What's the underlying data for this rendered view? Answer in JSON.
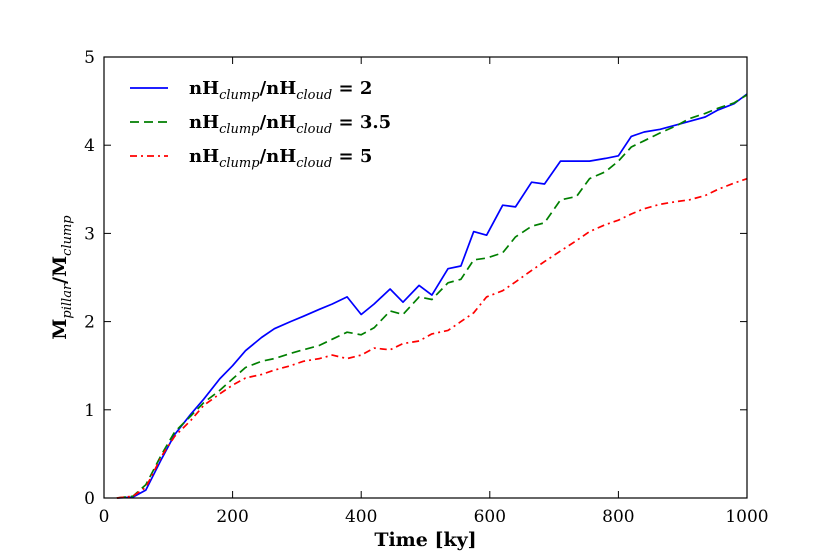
{
  "chart_data": {
    "type": "line",
    "xlabel": "Time [ky]",
    "ylabel": {
      "base1": "M",
      "sub1": "pillar",
      "sep": "/",
      "base2": "M",
      "sub2": "clump"
    },
    "xlim": [
      0,
      1000
    ],
    "ylim": [
      0,
      5
    ],
    "xticks": [
      0,
      200,
      400,
      600,
      800,
      1000
    ],
    "yticks": [
      0,
      1,
      2,
      3,
      4,
      5
    ],
    "grid": false,
    "legend_position": "top-left",
    "series": [
      {
        "name": "nH_clump/nH_cloud = 2",
        "label": {
          "b1": "nH",
          "s1": "clump",
          "mid": "/nH",
          "s2": "cloud",
          "tail": " = 2"
        },
        "color": "#0000ff",
        "style": "solid",
        "x": [
          20,
          45,
          65,
          90,
          110,
          135,
          155,
          180,
          200,
          220,
          245,
          265,
          290,
          310,
          335,
          355,
          378,
          400,
          420,
          445,
          465,
          490,
          510,
          535,
          555,
          575,
          595,
          620,
          640,
          665,
          685,
          710,
          735,
          755,
          780,
          800,
          820,
          840,
          865,
          890,
          910,
          935,
          955,
          980,
          1000
        ],
        "y": [
          0,
          0.01,
          0.09,
          0.45,
          0.72,
          0.95,
          1.12,
          1.35,
          1.5,
          1.67,
          1.82,
          1.92,
          2.0,
          2.06,
          2.14,
          2.2,
          2.28,
          2.08,
          2.2,
          2.37,
          2.22,
          2.41,
          2.3,
          2.6,
          2.63,
          3.02,
          2.98,
          3.32,
          3.3,
          3.58,
          3.56,
          3.82,
          3.82,
          3.82,
          3.85,
          3.88,
          4.1,
          4.15,
          4.18,
          4.23,
          4.27,
          4.32,
          4.4,
          4.47,
          4.58
        ]
      },
      {
        "name": "nH_clump/nH_cloud = 3.5",
        "label": {
          "b1": "nH",
          "s1": "clump",
          "mid": "/nH",
          "s2": "cloud",
          "tail": " = 3.5"
        },
        "color": "#007f00",
        "style": "dashed",
        "x": [
          20,
          45,
          65,
          90,
          110,
          135,
          155,
          180,
          200,
          220,
          245,
          265,
          290,
          310,
          335,
          355,
          378,
          400,
          420,
          445,
          465,
          490,
          510,
          535,
          555,
          575,
          595,
          620,
          640,
          665,
          685,
          710,
          735,
          755,
          780,
          800,
          820,
          840,
          865,
          890,
          910,
          935,
          955,
          980,
          1000
        ],
        "y": [
          0,
          0.02,
          0.15,
          0.5,
          0.75,
          0.93,
          1.08,
          1.22,
          1.35,
          1.48,
          1.55,
          1.58,
          1.64,
          1.68,
          1.73,
          1.8,
          1.88,
          1.85,
          1.93,
          2.12,
          2.08,
          2.28,
          2.25,
          2.44,
          2.48,
          2.7,
          2.72,
          2.78,
          2.96,
          3.08,
          3.12,
          3.38,
          3.42,
          3.62,
          3.7,
          3.82,
          3.98,
          4.05,
          4.14,
          4.22,
          4.3,
          4.36,
          4.42,
          4.48,
          4.57
        ]
      },
      {
        "name": "nH_clump/nH_cloud = 5",
        "label": {
          "b1": "nH",
          "s1": "clump",
          "mid": "/nH",
          "s2": "cloud",
          "tail": " = 5"
        },
        "color": "#ff0000",
        "style": "dashdot",
        "x": [
          20,
          45,
          65,
          90,
          110,
          135,
          155,
          180,
          200,
          220,
          245,
          265,
          290,
          310,
          335,
          355,
          378,
          400,
          420,
          445,
          465,
          490,
          510,
          535,
          555,
          575,
          595,
          620,
          640,
          665,
          685,
          710,
          735,
          755,
          780,
          800,
          820,
          840,
          865,
          890,
          910,
          935,
          955,
          980,
          1000
        ],
        "y": [
          0,
          0.02,
          0.12,
          0.48,
          0.7,
          0.88,
          1.05,
          1.18,
          1.28,
          1.36,
          1.4,
          1.45,
          1.5,
          1.55,
          1.58,
          1.62,
          1.58,
          1.62,
          1.7,
          1.68,
          1.75,
          1.78,
          1.86,
          1.9,
          2.0,
          2.1,
          2.28,
          2.35,
          2.45,
          2.58,
          2.68,
          2.8,
          2.92,
          3.02,
          3.1,
          3.15,
          3.22,
          3.28,
          3.33,
          3.36,
          3.38,
          3.43,
          3.5,
          3.57,
          3.62
        ]
      }
    ]
  }
}
